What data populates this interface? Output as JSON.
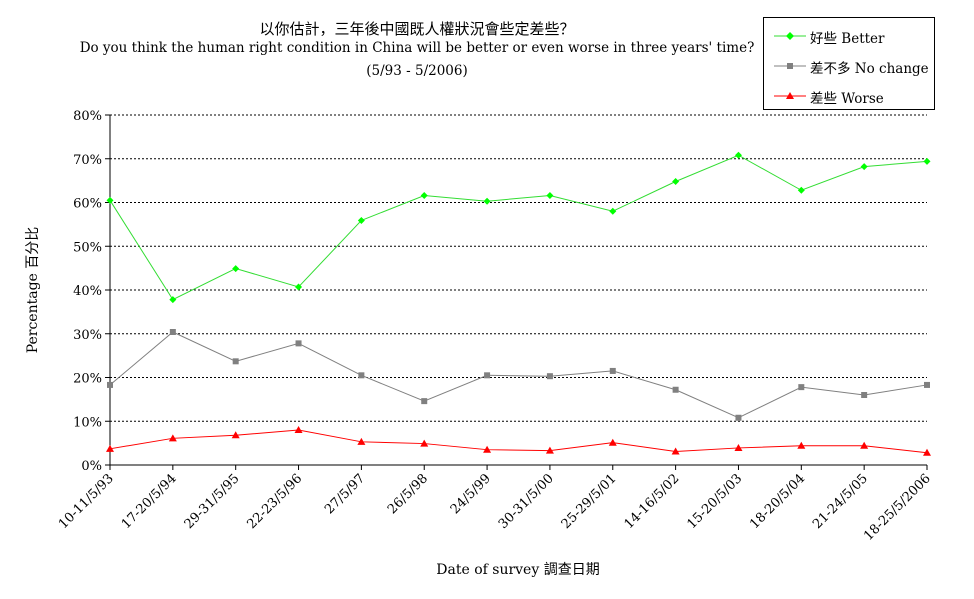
{
  "chart_data": {
    "type": "line",
    "title": "以你估計，三年後中國既人權狀況會些定差些？",
    "subtitle": "Do you think the human right condition in China will be better or even worse in three years' time?",
    "subtitle2": "(5/93 - 5/2006)",
    "xlabel": "Date of survey  調查日期",
    "ylabel": "Percentage  百分比",
    "ylim": [
      0,
      80
    ],
    "yticks": [
      "0%",
      "10%",
      "20%",
      "30%",
      "40%",
      "50%",
      "60%",
      "70%",
      "80%"
    ],
    "yticks_values": [
      0,
      10,
      20,
      30,
      40,
      50,
      60,
      70,
      80
    ],
    "grid": "horizontal dotted",
    "legend_position": "top-right",
    "categories": [
      "10-11/5/93",
      "17-20/5/94",
      "29-31/5/95",
      "22-23/5/96",
      "27/5/97",
      "26/5/98",
      "24/5/99",
      "30-31/5/00",
      "25-29/5/01",
      "14-16/5/02",
      "15-20/5/03",
      "18-20/5/04",
      "21-24/5/05",
      "18-25/5/2006"
    ],
    "series": [
      {
        "name": "好些 Better",
        "color": "#00ff00",
        "line_color": "#33dd33",
        "marker": "diamond",
        "values": [
          60.5,
          37.8,
          44.9,
          40.7,
          55.9,
          61.6,
          60.3,
          61.6,
          58.0,
          64.8,
          70.8,
          62.8,
          68.2,
          69.4
        ]
      },
      {
        "name": "差不多 No change",
        "color": "#808080",
        "line_color": "#808080",
        "marker": "square",
        "values": [
          18.3,
          30.4,
          23.7,
          27.8,
          20.5,
          14.6,
          20.5,
          20.3,
          21.5,
          17.2,
          10.8,
          17.8,
          16.0,
          18.3
        ]
      },
      {
        "name": "差些 Worse",
        "color": "#ff0000",
        "line_color": "#ff0000",
        "marker": "triangle",
        "values": [
          3.7,
          6.1,
          6.8,
          8.0,
          5.3,
          4.9,
          3.5,
          3.3,
          5.1,
          3.1,
          3.9,
          4.4,
          4.4,
          2.8
        ]
      }
    ]
  }
}
